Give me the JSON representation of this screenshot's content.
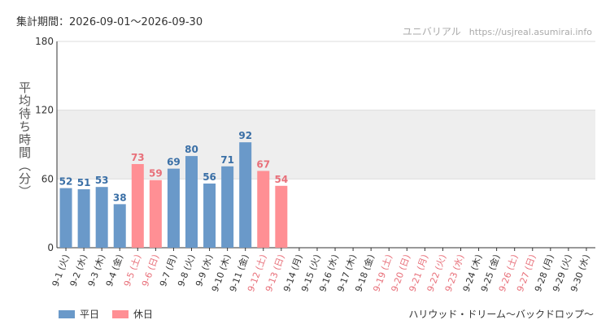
{
  "header": {
    "period": "集計期間：2026-09-01～2026-09-30",
    "site_name": "ユニバリアル",
    "site_url": "https://usjreal.asumirai.info"
  },
  "footer": {
    "attraction": "ハリウッド・ドリーム～バックドロップ～"
  },
  "legend": {
    "weekday_label": "平日",
    "holiday_label": "休日"
  },
  "colors": {
    "weekday": "#6a99c9",
    "holiday": "#ff8f94",
    "weekday_text": "#3a6fa6",
    "holiday_text": "#e8707a",
    "band": "#eeeeee"
  },
  "chart_data": {
    "type": "bar",
    "ylabel": "平均待ち時間（分）",
    "ylim": [
      0,
      180
    ],
    "yticks": [
      0,
      60,
      120,
      180
    ],
    "shaded_band": [
      60,
      120
    ],
    "categories": [
      "9-1 (火)",
      "9-2 (水)",
      "9-3 (木)",
      "9-4 (金)",
      "9-5 (土)",
      "9-6 (日)",
      "9-7 (月)",
      "9-8 (火)",
      "9-9 (水)",
      "9-10 (木)",
      "9-11 (金)",
      "9-12 (土)",
      "9-13 (日)",
      "9-14 (月)",
      "9-15 (火)",
      "9-16 (水)",
      "9-17 (木)",
      "9-18 (金)",
      "9-19 (土)",
      "9-20 (日)",
      "9-21 (月)",
      "9-22 (火)",
      "9-23 (水)",
      "9-24 (木)",
      "9-25 (金)",
      "9-26 (土)",
      "9-27 (日)",
      "9-28 (月)",
      "9-29 (火)",
      "9-30 (水)"
    ],
    "values": [
      52,
      51,
      53,
      38,
      73,
      59,
      69,
      80,
      56,
      71,
      92,
      67,
      54,
      null,
      null,
      null,
      null,
      null,
      null,
      null,
      null,
      null,
      null,
      null,
      null,
      null,
      null,
      null,
      null,
      null
    ],
    "day_type": [
      "weekday",
      "weekday",
      "weekday",
      "weekday",
      "holiday",
      "holiday",
      "weekday",
      "weekday",
      "weekday",
      "weekday",
      "weekday",
      "holiday",
      "holiday",
      "weekday",
      "weekday",
      "weekday",
      "weekday",
      "weekday",
      "holiday",
      "holiday",
      "holiday",
      "holiday",
      "holiday",
      "weekday",
      "weekday",
      "holiday",
      "holiday",
      "weekday",
      "weekday",
      "weekday"
    ],
    "legend_position": "bottom-left"
  }
}
